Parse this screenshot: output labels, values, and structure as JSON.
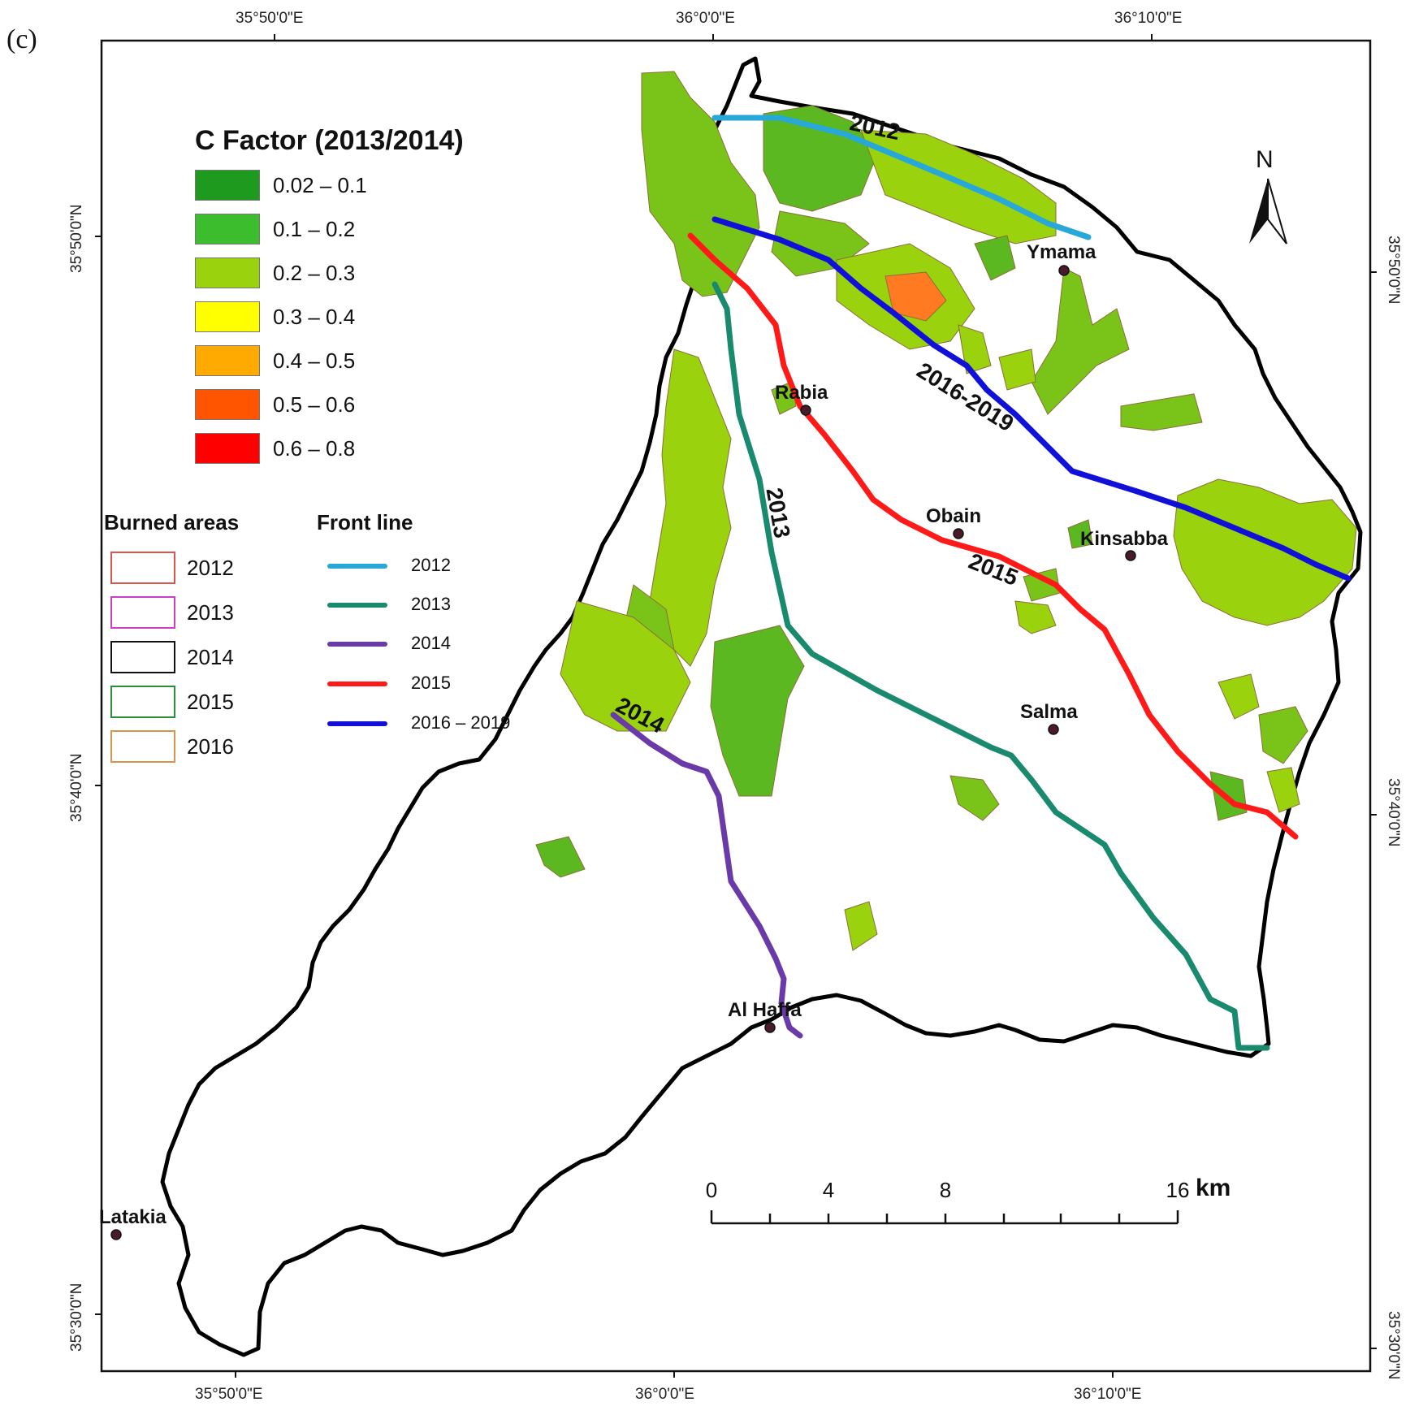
{
  "panel_label": "(c)",
  "coordinates": {
    "top": [
      "35°50'0\"E",
      "36°0'0\"E",
      "36°10'0\"E"
    ],
    "bottom": [
      "35°50'0\"E",
      "36°0'0\"E",
      "36°10'0\"E"
    ],
    "left": [
      "35°50'0\"N",
      "35°40'0\"N",
      "35°30'0\"N"
    ],
    "right": [
      "35°50'0\"N",
      "35°40'0\"N",
      "35°30'0\"N"
    ]
  },
  "legend": {
    "c_factor_title": "C Factor (2013/2014)",
    "c_factor_classes": [
      {
        "label": "0.02 – 0.1",
        "color": "#1e9a1e"
      },
      {
        "label": "0.1 – 0.2",
        "color": "#3cbd2e"
      },
      {
        "label": "0.2 – 0.3",
        "color": "#9ad20e"
      },
      {
        "label": "0.3 – 0.4",
        "color": "#ffff00"
      },
      {
        "label": "0.4 – 0.5",
        "color": "#ffaa00"
      },
      {
        "label": "0.5 – 0.6",
        "color": "#ff5500"
      },
      {
        "label": "0.6 – 0.8",
        "color": "#ff0000"
      }
    ],
    "burned_areas_title": "Burned areas",
    "burned_areas": [
      {
        "label": "2012",
        "color": "#d9564f"
      },
      {
        "label": "2013",
        "color": "#c83fc8"
      },
      {
        "label": "2014",
        "color": "#111111"
      },
      {
        "label": "2015",
        "color": "#2e8b3a"
      },
      {
        "label": "2016",
        "color": "#d4944a"
      }
    ],
    "front_line_title": "Front line",
    "front_lines": [
      {
        "label": "2012",
        "color": "#27a8d8"
      },
      {
        "label": "2013",
        "color": "#1a8a6e"
      },
      {
        "label": "2014",
        "color": "#6a3aa8"
      },
      {
        "label": "2015",
        "color": "#ff1a1a"
      },
      {
        "label": "2016 – 2019",
        "color": "#1010d8"
      }
    ]
  },
  "line_labels": [
    "2012",
    "2013",
    "2014",
    "2015",
    "2016-2019"
  ],
  "places": [
    "Ymama",
    "Rabia",
    "Obain",
    "Kinsabba",
    "Salma",
    "Al Haffa",
    "Latakia"
  ],
  "scale_bar": {
    "ticks": [
      "0",
      "4",
      "8",
      "16"
    ],
    "unit": "km"
  },
  "north_label": "N"
}
